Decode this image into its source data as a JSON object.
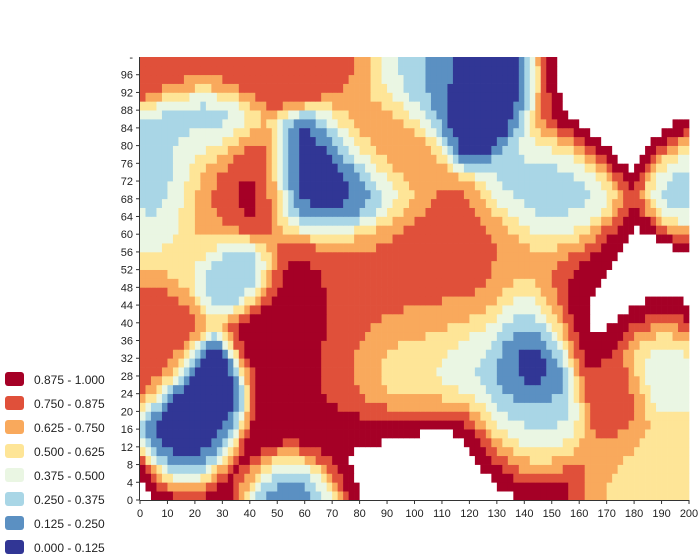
{
  "chart_data": {
    "type": "heatmap",
    "title": "",
    "xlabel": "",
    "ylabel": "",
    "xlim": [
      0,
      200
    ],
    "ylim": [
      0,
      100
    ],
    "x_ticks": [
      "0",
      "10",
      "20",
      "30",
      "40",
      "50",
      "60",
      "70",
      "80",
      "90",
      "100",
      "110",
      "120",
      "130",
      "140",
      "150",
      "160",
      "170",
      "180",
      "190",
      "200"
    ],
    "y_ticks": [
      "0",
      "4",
      "8",
      "12",
      "16",
      "20",
      "24",
      "28",
      "32",
      "36",
      "40",
      "44",
      "48",
      "52",
      "56",
      "60",
      "64",
      "68",
      "72",
      "76",
      "80",
      "84",
      "88",
      "92",
      "96"
    ],
    "y_top_tick": "-",
    "color_classes": [
      {
        "label": "0.875 - 1.000",
        "color": "#a50026"
      },
      {
        "label": "0.750 - 0.875",
        "color": "#e0503a"
      },
      {
        "label": "0.625 - 0.750",
        "color": "#f9a95c"
      },
      {
        "label": "0.500 - 0.625",
        "color": "#fee597"
      },
      {
        "label": "0.375 - 0.500",
        "color": "#eaf6e3"
      },
      {
        "label": "0.250 - 0.375",
        "color": "#a9d6e6"
      },
      {
        "label": "0.125 - 0.250",
        "color": "#5b90c2"
      },
      {
        "label": "0.000 - 0.125",
        "color": "#313695"
      }
    ],
    "above_max_color": "#ffffff",
    "features": [
      {
        "x": 22,
        "y": 21,
        "value": 0.0,
        "sx": 7,
        "sy": 6
      },
      {
        "x": 10,
        "y": 72,
        "value": 0.2,
        "sx": 6,
        "sy": 7
      },
      {
        "x": 25,
        "y": 84,
        "value": 0.25,
        "sx": 8,
        "sy": 6
      },
      {
        "x": 35,
        "y": 52,
        "value": 0.2,
        "sx": 7,
        "sy": 4
      },
      {
        "x": 35,
        "y": 71,
        "value": 0.98,
        "sx": 10,
        "sy": 7
      },
      {
        "x": 20,
        "y": 68,
        "value": 0.6,
        "sx": 10,
        "sy": 10
      },
      {
        "x": 8,
        "y": 36,
        "value": 0.82,
        "sx": 6,
        "sy": 6
      },
      {
        "x": 58,
        "y": 2,
        "value": 0.0,
        "sx": 8,
        "sy": 5
      },
      {
        "x": 70,
        "y": 72,
        "value": 0.0,
        "sx": 12,
        "sy": 7
      },
      {
        "x": 60,
        "y": 40,
        "value": 0.98,
        "sx": 10,
        "sy": 10
      },
      {
        "x": 80,
        "y": 33,
        "value": 0.82,
        "sx": 14,
        "sy": 14
      },
      {
        "x": 95,
        "y": 10,
        "value": 1.08,
        "sx": 28,
        "sy": 7
      },
      {
        "x": 100,
        "y": 40,
        "value": 0.75,
        "sx": 20,
        "sy": 10
      },
      {
        "x": 120,
        "y": 50,
        "value": 0.8,
        "sx": 28,
        "sy": 8
      },
      {
        "x": 140,
        "y": 36,
        "value": -0.1,
        "sx": 8,
        "sy": 9
      },
      {
        "x": 120,
        "y": 33,
        "value": 0.25,
        "sx": 10,
        "sy": 6
      },
      {
        "x": 95,
        "y": 30,
        "value": 0.3,
        "sx": 10,
        "sy": 6
      },
      {
        "x": 140,
        "y": 18,
        "value": 0.3,
        "sx": 10,
        "sy": 6
      },
      {
        "x": 183,
        "y": 46,
        "value": 1.08,
        "sx": 24,
        "sy": 8
      },
      {
        "x": 173,
        "y": 25,
        "value": 0.85,
        "sx": 6,
        "sy": 6
      },
      {
        "x": 190,
        "y": 33,
        "value": 0.3,
        "sx": 8,
        "sy": 6
      },
      {
        "x": 190,
        "y": 4,
        "value": 0.6,
        "sx": 12,
        "sy": 8
      },
      {
        "x": 125,
        "y": 92,
        "value": -0.15,
        "sx": 10,
        "sy": 6
      },
      {
        "x": 105,
        "y": 94,
        "value": 0.25,
        "sx": 12,
        "sy": 6
      },
      {
        "x": 88,
        "y": 82,
        "value": 0.8,
        "sx": 10,
        "sy": 7
      },
      {
        "x": 182,
        "y": 90,
        "value": 1.08,
        "sx": 22,
        "sy": 8
      },
      {
        "x": 40,
        "y": 97,
        "value": 0.85,
        "sx": 25,
        "sy": 4
      },
      {
        "x": 150,
        "y": 68,
        "value": 0.3,
        "sx": 10,
        "sy": 8
      },
      {
        "x": 198,
        "y": 72,
        "value": 0.3,
        "sx": 6,
        "sy": 6
      }
    ],
    "grid": false,
    "legend_position": "bottom-left"
  }
}
